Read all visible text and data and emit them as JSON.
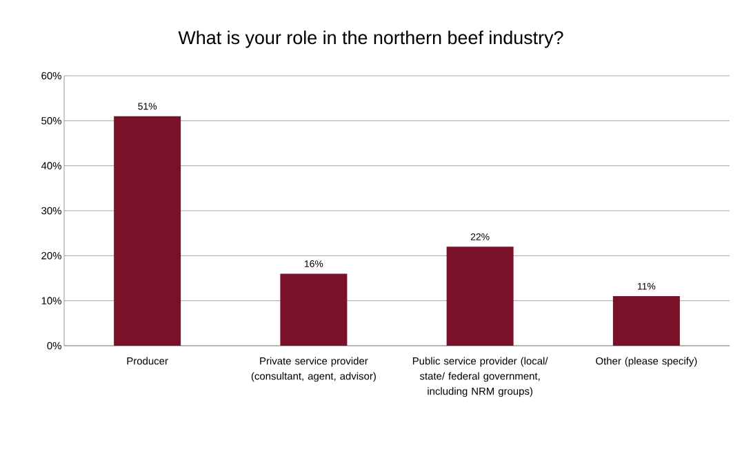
{
  "chart_data": {
    "type": "bar",
    "title": "What is your role in the northern beef industry?",
    "categories": [
      "Producer",
      "Private service provider (consultant, agent, advisor)",
      "Public service provider (local/ state/ federal government, including NRM groups)",
      "Other (please specify)"
    ],
    "values": [
      51,
      16,
      22,
      11
    ],
    "value_labels": [
      "51%",
      "16%",
      "22%",
      "11%"
    ],
    "color": "#7b1029",
    "ylim": [
      0,
      60
    ],
    "yticks": [
      {
        "value": 0,
        "label": "0%"
      },
      {
        "value": 10,
        "label": "10%"
      },
      {
        "value": 20,
        "label": "20%"
      },
      {
        "value": 30,
        "label": "30%"
      },
      {
        "value": 40,
        "label": "40%"
      },
      {
        "value": 50,
        "label": "50%"
      },
      {
        "value": 60,
        "label": "60%"
      }
    ],
    "grid": "y"
  }
}
